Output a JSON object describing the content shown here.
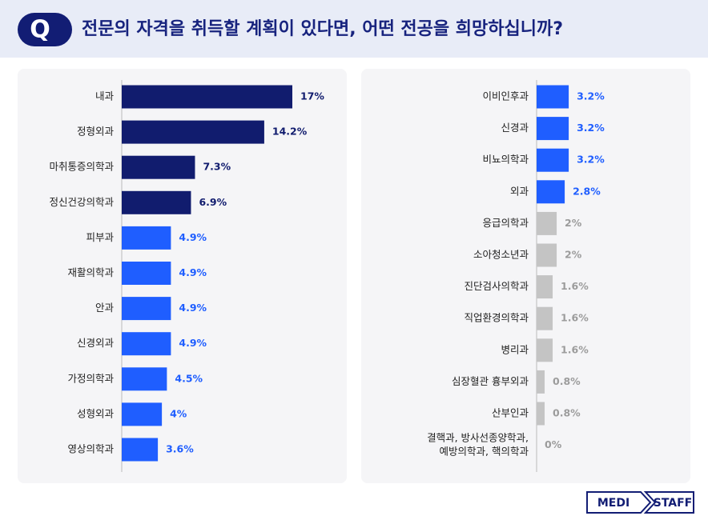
{
  "header": {
    "badge": "Q",
    "title": "전문의 자격을 취득할 계획이 있다면, 어떤 전공을 희망하십니까?"
  },
  "chart_data": [
    {
      "type": "hbar",
      "categories": [
        "내과",
        "정형외과",
        "마취통증의학과",
        "정신건강의학과",
        "피부과",
        "재활의학과",
        "안과",
        "신경외과",
        "가정의학과",
        "성형외과",
        "영상의학과"
      ],
      "values": [
        17,
        14.2,
        7.3,
        6.9,
        4.9,
        4.9,
        4.9,
        4.9,
        4.5,
        4,
        3.6
      ],
      "value_labels": [
        "17%",
        "14.2%",
        "7.3%",
        "6.9%",
        "4.9%",
        "4.9%",
        "4.9%",
        "4.9%",
        "4.5%",
        "4%",
        "3.6%"
      ],
      "colors": [
        "#111c6e",
        "#111c6e",
        "#111c6e",
        "#111c6e",
        "#1f5eff",
        "#1f5eff",
        "#1f5eff",
        "#1f5eff",
        "#1f5eff",
        "#1f5eff",
        "#1f5eff"
      ]
    },
    {
      "type": "hbar",
      "categories": [
        "이비인후과",
        "신경과",
        "비뇨의학과",
        "외과",
        "응급의학과",
        "소아청소년과",
        "진단검사의학과",
        "직업환경의학과",
        "병리과",
        "심장혈관 흉부외과",
        "산부인과",
        [
          "결핵과, 방사선종양학과,",
          "예방의학과, 핵의학과"
        ]
      ],
      "values": [
        3.2,
        3.2,
        3.2,
        2.8,
        2,
        2,
        1.6,
        1.6,
        1.6,
        0.8,
        0.8,
        0
      ],
      "value_labels": [
        "3.2%",
        "3.2%",
        "3.2%",
        "2.8%",
        "2%",
        "2%",
        "1.6%",
        "1.6%",
        "1.6%",
        "0.8%",
        "0.8%",
        "0%"
      ],
      "colors": [
        "#1f5eff",
        "#1f5eff",
        "#1f5eff",
        "#1f5eff",
        "#c4c4c4",
        "#c4c4c4",
        "#c4c4c4",
        "#c4c4c4",
        "#c4c4c4",
        "#c4c4c4",
        "#c4c4c4",
        "#c4c4c4"
      ]
    }
  ],
  "footer": {
    "logo_left": "MEDI",
    "logo_right": "STAFF"
  }
}
